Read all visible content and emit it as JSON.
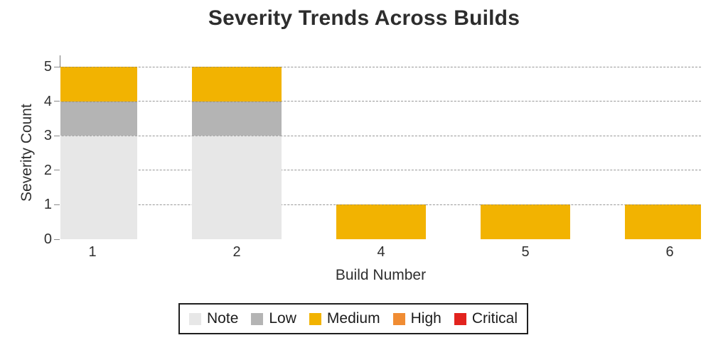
{
  "chart_data": {
    "type": "bar",
    "stacked": true,
    "title": "Severity Trends Across Builds",
    "xlabel": "Build Number",
    "ylabel": "Severity Count",
    "categories": [
      "1",
      "2",
      "4",
      "5",
      "6"
    ],
    "yticks": [
      "0",
      "1",
      "2",
      "3",
      "4",
      "5"
    ],
    "ylim": [
      0,
      5
    ],
    "grid": "horizontal-dashed",
    "legend_position": "bottom",
    "series": [
      {
        "name": "Note",
        "color": "#E7E7E7",
        "values": [
          3,
          3,
          0,
          0,
          0
        ]
      },
      {
        "name": "Low",
        "color": "#B4B4B4",
        "values": [
          1,
          1,
          0,
          0,
          0
        ]
      },
      {
        "name": "Medium",
        "color": "#F2B301",
        "values": [
          1,
          1,
          1,
          1,
          1
        ]
      },
      {
        "name": "High",
        "color": "#F08C33",
        "values": [
          0,
          0,
          0,
          0,
          0
        ]
      },
      {
        "name": "Critical",
        "color": "#E2231E",
        "values": [
          0,
          0,
          0,
          0,
          0
        ]
      }
    ]
  }
}
